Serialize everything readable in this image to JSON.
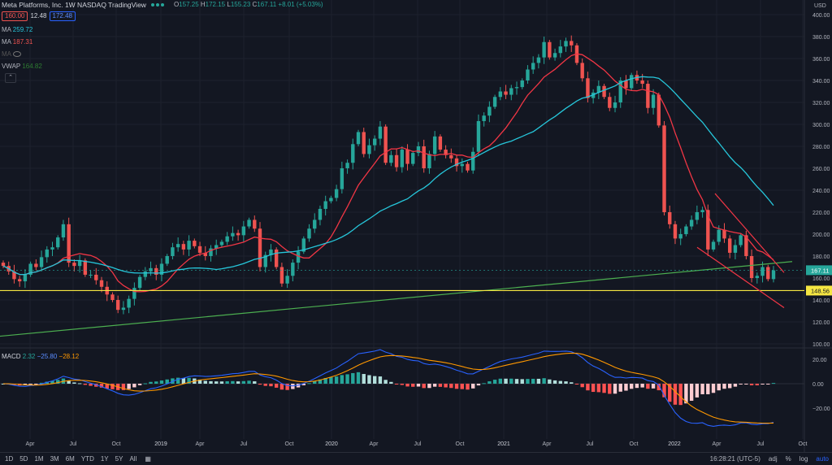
{
  "header": {
    "title": "Meta Platforms, Inc.  1W  NASDAQ  TradingView",
    "ohlc": [
      {
        "k": "O",
        "v": "157.25"
      },
      {
        "k": "H",
        "v": "172.15"
      },
      {
        "k": "L",
        "v": "155.23"
      },
      {
        "k": "C",
        "v": "167.11 +8.01 (+5.03%)"
      }
    ],
    "sell_price": "160.00",
    "spread": "12.48",
    "buy_price": "172.48"
  },
  "indicators": [
    {
      "name": "MA",
      "value": "259.72",
      "color": "#26c6da"
    },
    {
      "name": "MA",
      "value": "187.31",
      "color": "#ef5350"
    },
    {
      "name": "MA",
      "value": "",
      "color": "#555"
    },
    {
      "name": "VWAP",
      "value": "164.82",
      "color": "#2e7d32"
    }
  ],
  "macd": {
    "label": "MACD",
    "v1": "2.32",
    "v2": "−25.80",
    "v3": "−28.12"
  },
  "axis": {
    "currency": "USD",
    "price_ticks": [
      "400.00",
      "380.00",
      "360.00",
      "340.00",
      "320.00",
      "300.00",
      "280.00",
      "260.00",
      "240.00",
      "220.00",
      "200.00",
      "180.00",
      "160.00",
      "140.00",
      "120.00",
      "100.00"
    ],
    "current_price": "167.11",
    "support_price": "148.56",
    "macd_ticks": [
      "20.00",
      "0.00",
      "−20.00"
    ],
    "time_ticks": [
      "Apr",
      "Jul",
      "Oct",
      "2019",
      "Apr",
      "Jul",
      "Oct",
      "2020",
      "Apr",
      "Jul",
      "Oct",
      "2021",
      "Apr",
      "Jul",
      "Oct",
      "2022",
      "Apr",
      "Jul",
      "Oct"
    ]
  },
  "bottombar": {
    "timeframes": [
      "1D",
      "5D",
      "1M",
      "3M",
      "6M",
      "YTD",
      "1Y",
      "5Y",
      "All"
    ],
    "time": "16:28:21 (UTC-5)",
    "adj": "adj",
    "pct": "%",
    "log": "log",
    "auto": "auto"
  },
  "colors": {
    "up": "#26a69a",
    "down": "#ef5350",
    "ma_fast": "#f23645",
    "ma_slow": "#26c6da",
    "vwap": "#4caf50",
    "support": "#f5e642",
    "macd_line": "#2962ff",
    "signal_line": "#ff9800"
  },
  "chart_data": {
    "type": "candlestick",
    "symbol": "Meta Platforms, Inc.",
    "interval": "1W",
    "weekly_close": [
      171,
      166,
      159,
      157,
      163,
      173,
      170,
      179,
      186,
      188,
      197,
      209,
      174,
      171,
      176,
      163,
      163,
      158,
      152,
      145,
      140,
      131,
      133,
      141,
      151,
      161,
      166,
      169,
      163,
      173,
      180,
      188,
      191,
      186,
      194,
      189,
      183,
      180,
      187,
      190,
      193,
      198,
      201,
      199,
      207,
      213,
      205,
      170,
      181,
      186,
      170,
      155,
      162,
      174,
      184,
      196,
      205,
      213,
      223,
      230,
      233,
      241,
      260,
      265,
      282,
      293,
      273,
      281,
      287,
      298,
      265,
      272,
      261,
      277,
      264,
      274,
      280,
      260,
      273,
      289,
      277,
      272,
      269,
      262,
      264,
      258,
      275,
      303,
      308,
      316,
      325,
      330,
      327,
      333,
      334,
      340,
      350,
      356,
      361,
      375,
      361,
      365,
      371,
      376,
      372,
      356,
      342,
      324,
      329,
      335,
      325,
      315,
      320,
      340,
      333,
      345,
      340,
      337,
      315,
      327,
      299,
      220,
      209,
      196,
      200,
      207,
      213,
      220,
      222,
      186,
      193,
      204,
      196,
      183,
      190,
      199,
      180,
      160,
      162,
      170,
      159,
      167
    ]
  },
  "chart_text": {
    "ylabel_currency": "USD"
  }
}
